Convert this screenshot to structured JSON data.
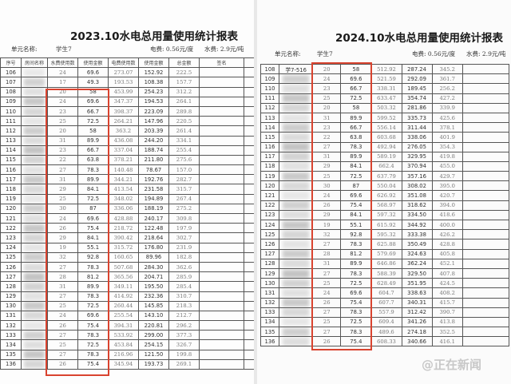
{
  "left_sheet": {
    "title": "2023.10水电总用量使用统计报表",
    "unit_label": "单元名称:",
    "unit_value": "学生7",
    "electric_rate": "电费: 0.56元/度",
    "water_rate": "水费: 2.9元/吨",
    "headers": [
      "序号",
      "房间名称",
      "水费使用数",
      "使用金额",
      "电费使用数",
      "使用金额",
      "总金额",
      "签名",
      ""
    ],
    "rows": [
      [
        "106",
        "",
        "24",
        "69.6",
        "273.07",
        "152.92",
        "222.5"
      ],
      [
        "107",
        "",
        "17",
        "49.3",
        "193.53",
        "108.38",
        "157.7"
      ],
      [
        "108",
        "",
        "20",
        "58",
        "453.99",
        "254.23",
        "312.2"
      ],
      [
        "109",
        "",
        "24",
        "69.6",
        "347.37",
        "194.53",
        "264.1"
      ],
      [
        "110",
        "",
        "23",
        "66.7",
        "398.37",
        "223.09",
        "289.8"
      ],
      [
        "111",
        "",
        "25",
        "72.5",
        "264.21",
        "147.96",
        "220.5"
      ],
      [
        "112",
        "",
        "20",
        "58",
        "363.2",
        "203.39",
        "261.4"
      ],
      [
        "113",
        "",
        "31",
        "89.9",
        "436.08",
        "244.20",
        "334.1"
      ],
      [
        "114",
        "",
        "23",
        "66.7",
        "337.04",
        "188.74",
        "255.4"
      ],
      [
        "115",
        "",
        "22",
        "63.8",
        "378.21",
        "211.80",
        "275.6"
      ],
      [
        "116",
        "",
        "27",
        "78.3",
        "140.48",
        "78.67",
        "157.0"
      ],
      [
        "117",
        "",
        "31",
        "89.9",
        "344.21",
        "192.76",
        "282.7"
      ],
      [
        "118",
        "",
        "29",
        "84.1",
        "413.54",
        "231.58",
        "315.7"
      ],
      [
        "119",
        "",
        "25",
        "72.5",
        "348.02",
        "194.89",
        "267.4"
      ],
      [
        "120",
        "",
        "30",
        "87",
        "336.06",
        "188.19",
        "275.2"
      ],
      [
        "121",
        "",
        "24",
        "69.6",
        "428.88",
        "240.17",
        "309.8"
      ],
      [
        "122",
        "",
        "26",
        "75.4",
        "218.72",
        "122.48",
        "197.9"
      ],
      [
        "123",
        "",
        "29",
        "84.1",
        "390.42",
        "218.64",
        "302.7"
      ],
      [
        "124",
        "",
        "19",
        "55.1",
        "315.72",
        "176.80",
        "231.9"
      ],
      [
        "125",
        "",
        "32",
        "92.8",
        "160.65",
        "89.96",
        "182.8"
      ],
      [
        "126",
        "",
        "27",
        "78.3",
        "507.68",
        "284.30",
        "362.6"
      ],
      [
        "127",
        "",
        "28",
        "81.2",
        "365.56",
        "204.71",
        "285.9"
      ],
      [
        "128",
        "",
        "31",
        "89.9",
        "349.11",
        "195.50",
        "285.4"
      ],
      [
        "129",
        "",
        "27",
        "78.3",
        "414.92",
        "232.36",
        "310.7"
      ],
      [
        "130",
        "",
        "25",
        "72.5",
        "260.44",
        "145.85",
        "218.3"
      ],
      [
        "131",
        "",
        "24",
        "69.6",
        "255.54",
        "143.10",
        "212.7"
      ],
      [
        "132",
        "",
        "26",
        "75.4",
        "394.31",
        "220.81",
        "296.2"
      ],
      [
        "133",
        "",
        "27",
        "78.3",
        "533.92",
        "299.00",
        "377.3"
      ],
      [
        "134",
        "",
        "25",
        "72.5",
        "453.84",
        "254.15",
        "326.7"
      ],
      [
        "135",
        "",
        "27",
        "78.3",
        "216.96",
        "121.50",
        "199.8"
      ],
      [
        "136",
        "",
        "26",
        "75.4",
        "345.94",
        "193.73",
        "269.1"
      ]
    ]
  },
  "right_sheet": {
    "title": "2024.10水电总用量使用统计报表",
    "unit_label": "单元名称:",
    "unit_value": "学生7",
    "electric_rate": "电费: 0.56元/度",
    "water_rate": "水费: 2.9元/吨",
    "rows": [
      [
        "108",
        "学7-516",
        "20",
        "58",
        "512.92",
        "287.24",
        "345.2"
      ],
      [
        "109",
        "",
        "24",
        "69.6",
        "521.59",
        "292.09",
        "361.7"
      ],
      [
        "110",
        "",
        "23",
        "66.7",
        "338.31",
        "189.45",
        "256.2"
      ],
      [
        "111",
        "",
        "25",
        "72.5",
        "633.47",
        "354.74",
        "427.2"
      ],
      [
        "112",
        "",
        "20",
        "58",
        "503.32",
        "281.86",
        "339.9"
      ],
      [
        "113",
        "",
        "31",
        "89.9",
        "599.52",
        "335.73",
        "425.6"
      ],
      [
        "114",
        "",
        "23",
        "66.7",
        "556.14",
        "311.44",
        "378.1"
      ],
      [
        "115",
        "",
        "22",
        "63.8",
        "603.68",
        "338.06",
        "401.9"
      ],
      [
        "116",
        "",
        "27",
        "78.3",
        "492.94",
        "276.05",
        "354.3"
      ],
      [
        "117",
        "",
        "31",
        "89.9",
        "589.19",
        "329.95",
        "419.8"
      ],
      [
        "118",
        "",
        "29",
        "84.1",
        "662.4",
        "370.94",
        "455.0"
      ],
      [
        "119",
        "",
        "25",
        "72.5",
        "637.79",
        "357.16",
        "429.7"
      ],
      [
        "120",
        "",
        "30",
        "87",
        "550.04",
        "308.02",
        "395.0"
      ],
      [
        "121",
        "",
        "24",
        "69.6",
        "626.92",
        "351.08",
        "420.7"
      ],
      [
        "122",
        "",
        "26",
        "75.4",
        "568.97",
        "318.62",
        "394.0"
      ],
      [
        "123",
        "",
        "29",
        "84.1",
        "597.32",
        "334.50",
        "418.6"
      ],
      [
        "124",
        "",
        "19",
        "55.1",
        "615.92",
        "344.92",
        "400.0"
      ],
      [
        "125",
        "",
        "32",
        "92.8",
        "595.32",
        "333.38",
        "426.2"
      ],
      [
        "126",
        "",
        "27",
        "78.3",
        "625.88",
        "350.49",
        "428.8"
      ],
      [
        "127",
        "",
        "28",
        "81.2",
        "579.69",
        "324.63",
        "405.8"
      ],
      [
        "128",
        "",
        "31",
        "89.9",
        "646.86",
        "362.24",
        "452.1"
      ],
      [
        "129",
        "",
        "27",
        "78.3",
        "588.39",
        "329.50",
        "407.8"
      ],
      [
        "130",
        "",
        "25",
        "72.5",
        "628.49",
        "351.95",
        "424.5"
      ],
      [
        "131",
        "",
        "24",
        "69.6",
        "604.7",
        "338.63",
        "408.2"
      ],
      [
        "132",
        "",
        "26",
        "75.4",
        "607.7",
        "340.31",
        "415.7"
      ],
      [
        "133",
        "",
        "27",
        "78.3",
        "557.9",
        "312.42",
        "390.7"
      ],
      [
        "134",
        "",
        "25",
        "72.5",
        "609.4",
        "341.26",
        "413.8"
      ],
      [
        "135",
        "",
        "27",
        "78.3",
        "489.6",
        "274.18",
        "352.5"
      ],
      [
        "136",
        "",
        "26",
        "75.4",
        "608.33",
        "340.66",
        "416.1"
      ]
    ]
  },
  "watermark": "@正在新闻",
  "colors": {
    "highlight_box": "#d9432f"
  }
}
